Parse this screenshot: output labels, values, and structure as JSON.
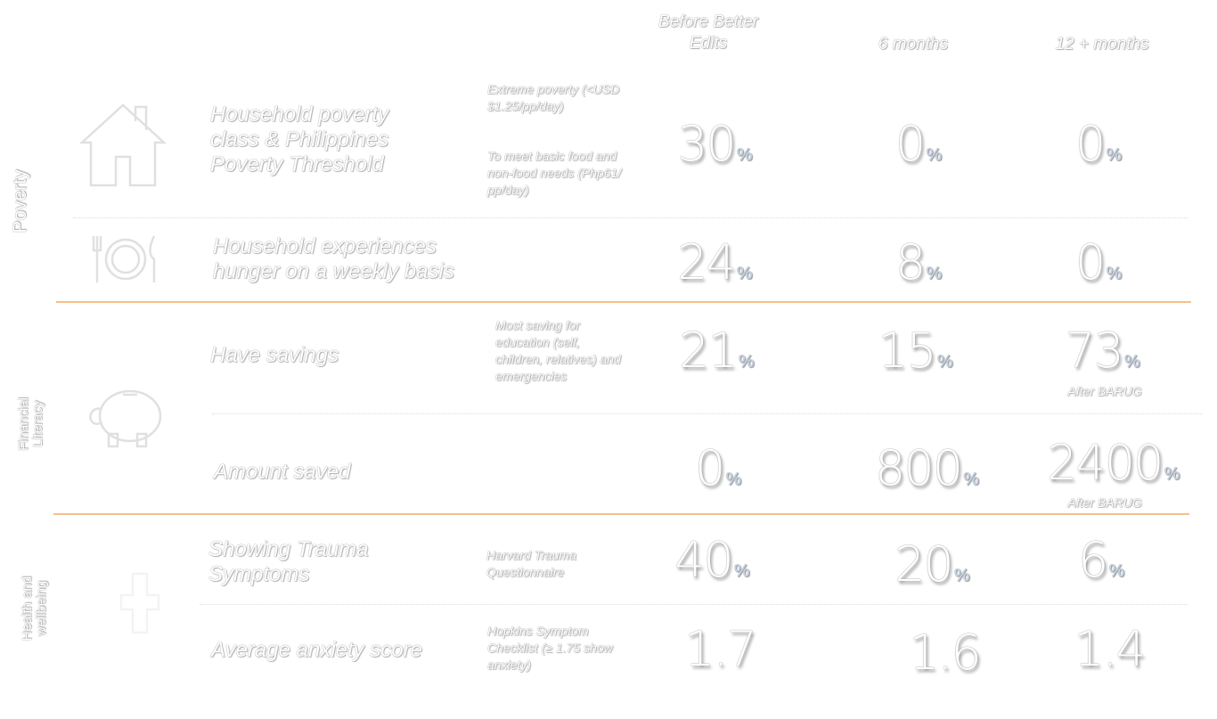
{
  "columns": {
    "before": "Before Better Edits",
    "six": "6 months",
    "twelve": "12 + months"
  },
  "sections": {
    "poverty": "Poverty",
    "financial_1": "Financial",
    "financial_2": "Literacy",
    "health_1": "Health and",
    "health_2": "wellbeing"
  },
  "rows": {
    "poverty_class": {
      "label": "Household poverty class & Philippines Poverty Threshold",
      "note1": "Extreme poverty (<USD $1.25/pp/day)",
      "note2": "To meet basic food and non-food needs (Php61/ pp/day)",
      "before": "30",
      "six": "0",
      "twelve": "0"
    },
    "hunger": {
      "label": "Household experiences hunger on a weekly basis",
      "before": "24",
      "six": "8",
      "twelve": "0"
    },
    "savings": {
      "label": "Have savings",
      "note": "Most saving for education (self, children, relatives) and emergencies",
      "before": "21",
      "six": "15",
      "twelve": "73",
      "twelve_sub": "After BARUG"
    },
    "amount": {
      "label": "Amount saved",
      "before": "0",
      "six": "800",
      "twelve": "2400",
      "twelve_sub": "After BARUG"
    },
    "trauma": {
      "label": "Showing Trauma Symptoms",
      "note": "Harvard Trauma Questionnaire",
      "before": "40",
      "six": "20",
      "twelve": "6"
    },
    "anxiety": {
      "label": "Average anxiety score",
      "note": "Hopkins Symptom Checklist (≥ 1.75 show anxiety)",
      "before": "1.7",
      "six": "1.6",
      "twelve": "1.4"
    }
  },
  "percent_symbol": "%",
  "icons": [
    "house-icon",
    "plate-cutlery-icon",
    "piggy-bank-icon",
    "medical-cross-icon"
  ],
  "colors": {
    "section_divider": "#f4c28a",
    "percent": "#c9d1da"
  }
}
